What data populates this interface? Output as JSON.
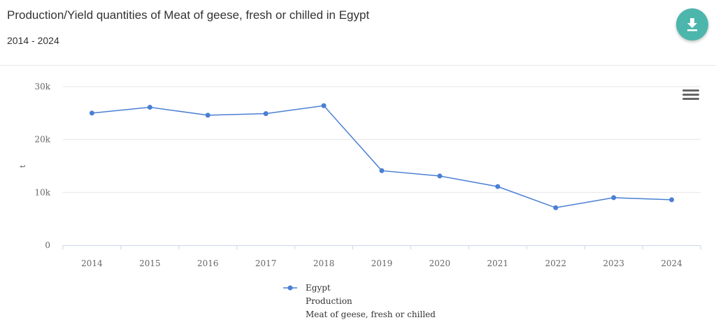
{
  "header": {
    "title": "Production/Yield quantities of Meat of geese, fresh or chilled in Egypt",
    "subtitle": "2014 - 2024"
  },
  "icons": {
    "download": "download-icon",
    "menu": "hamburger-menu-icon"
  },
  "colors": {
    "series": "#4a7fd4",
    "accent": "#4db6ac"
  },
  "chart_data": {
    "type": "line",
    "title": "Production/Yield quantities of Meat of geese, fresh or chilled in Egypt",
    "subtitle": "2014 - 2024",
    "xlabel": "",
    "ylabel": "t",
    "x": [
      "2014",
      "2015",
      "2016",
      "2017",
      "2018",
      "2019",
      "2020",
      "2021",
      "2022",
      "2023",
      "2024"
    ],
    "series": [
      {
        "name": "Egypt",
        "values": [
          25000,
          26100,
          24600,
          24900,
          26400,
          14100,
          13100,
          11100,
          7100,
          9000,
          8600
        ]
      }
    ],
    "ylim": [
      0,
      30000
    ],
    "yticks": [
      0,
      10000,
      20000,
      30000
    ],
    "ytick_labels": [
      "0",
      "10k",
      "20k",
      "30k"
    ],
    "grid": true,
    "legend": {
      "position": "bottom",
      "lines": [
        "Egypt",
        "Production",
        "Meat of geese, fresh or chilled"
      ]
    }
  }
}
